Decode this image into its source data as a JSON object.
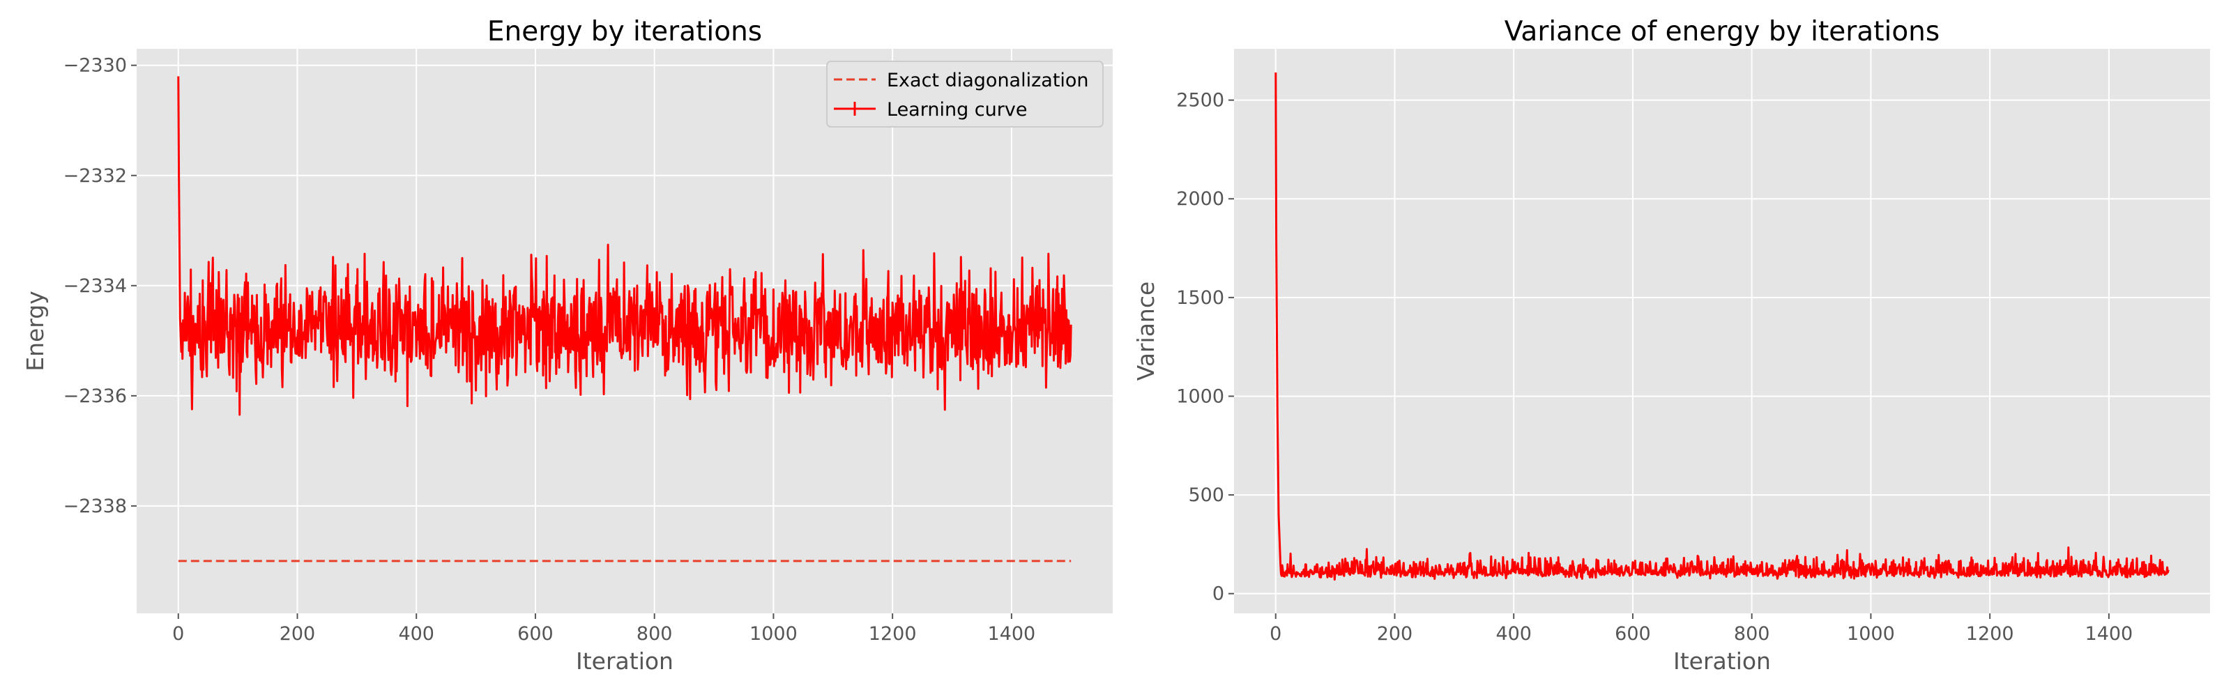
{
  "chart_data": [
    {
      "type": "line",
      "title": "Energy by iterations",
      "xlabel": "Iteration",
      "ylabel": "Energy",
      "xlim": [
        -70,
        1570
      ],
      "ylim": [
        -2339.95,
        -2329.7
      ],
      "xticks": [
        0,
        200,
        400,
        600,
        800,
        1000,
        1200,
        1400
      ],
      "yticks": [
        -2338,
        -2336,
        -2334,
        -2332,
        -2330
      ],
      "ytick_labels": [
        "−2338",
        "−2336",
        "−2334",
        "−2332",
        "−2330"
      ],
      "grid": true,
      "legend_position": "top-right",
      "series": [
        {
          "name": "Exact diagonalization",
          "style": "dashed",
          "color": "#e8402a",
          "x": [
            0,
            1500
          ],
          "y": [
            -2339,
            -2339
          ]
        },
        {
          "name": "Learning curve",
          "style": "solid",
          "color": "#ff0000",
          "x_start": 0,
          "x_end": 1500,
          "initial_points": [
            [
              0,
              -2330.2
            ],
            [
              1,
              -2332.0
            ],
            [
              2,
              -2333.4
            ],
            [
              3,
              -2334.6
            ],
            [
              5,
              -2335.2
            ]
          ],
          "mean": -2334.8,
          "approx_min": -2337.0,
          "approx_max": -2332.5
        }
      ]
    },
    {
      "type": "line",
      "title": "Variance of energy by iterations",
      "xlabel": "Iteration",
      "ylabel": "Variance",
      "xlim": [
        -70,
        1570
      ],
      "ylim": [
        -100,
        2760
      ],
      "xticks": [
        0,
        200,
        400,
        600,
        800,
        1000,
        1200,
        1400
      ],
      "yticks": [
        0,
        500,
        1000,
        1500,
        2000,
        2500
      ],
      "grid": true,
      "series": [
        {
          "color": "#ff0000",
          "x_start": 0,
          "x_end": 1500,
          "initial_points": [
            [
              0,
              2640
            ],
            [
              1,
              1800
            ],
            [
              3,
              900
            ],
            [
              5,
              400
            ],
            [
              8,
              150
            ]
          ],
          "mean": 110,
          "approx_min": 50,
          "approx_max": 270
        }
      ]
    }
  ]
}
